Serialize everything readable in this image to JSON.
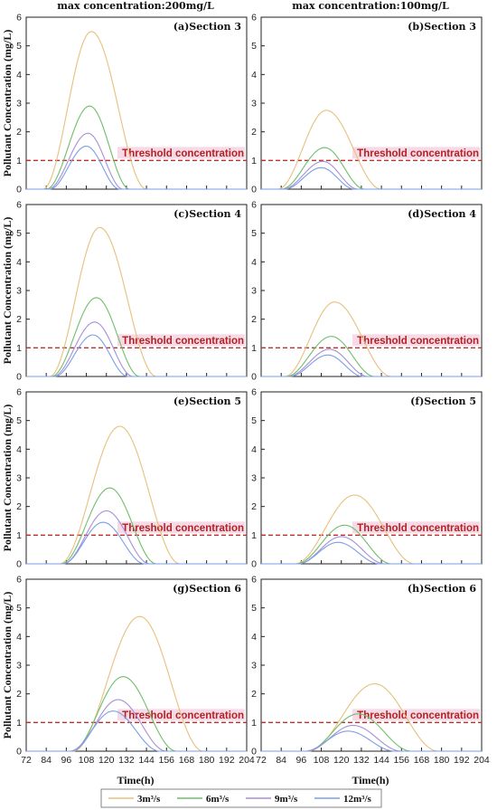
{
  "figure": {
    "col_titles": [
      "max concentration:200mg/L",
      "max concentration:100mg/L"
    ],
    "ylabel": "Pollutant Concentration (mg/L)",
    "xlabel": "Time(h)",
    "threshold_label": "Threshold concentration",
    "legend": [
      "3m³/s",
      "6m³/s",
      "9m³/s",
      "12m³/s"
    ],
    "colors": {
      "3m3s": "#e8c07d",
      "6m3s": "#6fbf6a",
      "9m3s": "#a88fd6",
      "12m3s": "#7b9ee8",
      "threshold": "#c0302b",
      "threshold_band": "#f6d6e4"
    }
  },
  "chart_data": [
    {
      "type": "line",
      "title": "(a)Section 3",
      "xlim": [
        72,
        204
      ],
      "ylim": [
        0,
        6
      ],
      "threshold": 1,
      "xticks": [
        72,
        84,
        96,
        108,
        120,
        132,
        144,
        156,
        168,
        180,
        192,
        204
      ],
      "yticks": [
        0,
        1,
        2,
        3,
        4,
        5,
        6
      ],
      "series": [
        {
          "name": "3m³/s",
          "peak_x": 111,
          "peak_y": 5.5,
          "start_x": 82,
          "end_x": 144
        },
        {
          "name": "6m³/s",
          "peak_x": 110,
          "peak_y": 2.9,
          "start_x": 84,
          "end_x": 134
        },
        {
          "name": "9m³/s",
          "peak_x": 109,
          "peak_y": 1.95,
          "start_x": 85,
          "end_x": 130
        },
        {
          "name": "12m³/s",
          "peak_x": 108,
          "peak_y": 1.5,
          "start_x": 86,
          "end_x": 128
        }
      ]
    },
    {
      "type": "line",
      "title": "(b)Section 3",
      "xlim": [
        72,
        204
      ],
      "ylim": [
        0,
        6
      ],
      "threshold": 1,
      "xticks": [
        72,
        84,
        96,
        108,
        120,
        132,
        144,
        156,
        168,
        180,
        192,
        204
      ],
      "yticks": [
        0,
        1,
        2,
        3,
        4,
        5,
        6
      ],
      "series": [
        {
          "name": "3m³/s",
          "peak_x": 111,
          "peak_y": 2.75,
          "start_x": 82,
          "end_x": 144
        },
        {
          "name": "6m³/s",
          "peak_x": 110,
          "peak_y": 1.45,
          "start_x": 84,
          "end_x": 134
        },
        {
          "name": "9m³/s",
          "peak_x": 109,
          "peak_y": 0.97,
          "start_x": 85,
          "end_x": 130
        },
        {
          "name": "12m³/s",
          "peak_x": 108,
          "peak_y": 0.75,
          "start_x": 86,
          "end_x": 128
        }
      ]
    },
    {
      "type": "line",
      "title": "(c)Section 4",
      "xlim": [
        72,
        204
      ],
      "ylim": [
        0,
        6
      ],
      "threshold": 1,
      "xticks": [
        72,
        84,
        96,
        108,
        120,
        132,
        144,
        156,
        168,
        180,
        192,
        204
      ],
      "yticks": [
        0,
        1,
        2,
        3,
        4,
        5,
        6
      ],
      "series": [
        {
          "name": "3m³/s",
          "peak_x": 116,
          "peak_y": 5.2,
          "start_x": 86,
          "end_x": 150
        },
        {
          "name": "6m³/s",
          "peak_x": 114,
          "peak_y": 2.75,
          "start_x": 87,
          "end_x": 140
        },
        {
          "name": "9m³/s",
          "peak_x": 113,
          "peak_y": 1.9,
          "start_x": 88,
          "end_x": 136
        },
        {
          "name": "12m³/s",
          "peak_x": 112,
          "peak_y": 1.45,
          "start_x": 89,
          "end_x": 133
        }
      ]
    },
    {
      "type": "line",
      "title": "(d)Section 4",
      "xlim": [
        72,
        204
      ],
      "ylim": [
        0,
        6
      ],
      "threshold": 1,
      "xticks": [
        72,
        84,
        96,
        108,
        120,
        132,
        144,
        156,
        168,
        180,
        192,
        204
      ],
      "yticks": [
        0,
        1,
        2,
        3,
        4,
        5,
        6
      ],
      "series": [
        {
          "name": "3m³/s",
          "peak_x": 116,
          "peak_y": 2.6,
          "start_x": 86,
          "end_x": 150
        },
        {
          "name": "6m³/s",
          "peak_x": 114,
          "peak_y": 1.4,
          "start_x": 87,
          "end_x": 140
        },
        {
          "name": "9m³/s",
          "peak_x": 113,
          "peak_y": 0.95,
          "start_x": 88,
          "end_x": 136
        },
        {
          "name": "12m³/s",
          "peak_x": 112,
          "peak_y": 0.75,
          "start_x": 89,
          "end_x": 133
        }
      ]
    },
    {
      "type": "line",
      "title": "(e)Section 5",
      "xlim": [
        72,
        204
      ],
      "ylim": [
        0,
        6
      ],
      "threshold": 1,
      "xticks": [
        72,
        84,
        96,
        108,
        120,
        132,
        144,
        156,
        168,
        180,
        192,
        204
      ],
      "yticks": [
        0,
        1,
        2,
        3,
        4,
        5,
        6
      ],
      "series": [
        {
          "name": "3m³/s",
          "peak_x": 128,
          "peak_y": 4.8,
          "start_x": 92,
          "end_x": 164
        },
        {
          "name": "6m³/s",
          "peak_x": 122,
          "peak_y": 2.65,
          "start_x": 93,
          "end_x": 150
        },
        {
          "name": "9m³/s",
          "peak_x": 120,
          "peak_y": 1.85,
          "start_x": 94,
          "end_x": 146
        },
        {
          "name": "12m³/s",
          "peak_x": 118,
          "peak_y": 1.45,
          "start_x": 94,
          "end_x": 143
        }
      ]
    },
    {
      "type": "line",
      "title": "(f)Section 5",
      "xlim": [
        72,
        204
      ],
      "ylim": [
        0,
        6
      ],
      "threshold": 1,
      "xticks": [
        72,
        84,
        96,
        108,
        120,
        132,
        144,
        156,
        168,
        180,
        192,
        204
      ],
      "yticks": [
        0,
        1,
        2,
        3,
        4,
        5,
        6
      ],
      "series": [
        {
          "name": "3m³/s",
          "peak_x": 128,
          "peak_y": 2.4,
          "start_x": 92,
          "end_x": 164
        },
        {
          "name": "6m³/s",
          "peak_x": 122,
          "peak_y": 1.35,
          "start_x": 93,
          "end_x": 150
        },
        {
          "name": "9m³/s",
          "peak_x": 120,
          "peak_y": 0.95,
          "start_x": 94,
          "end_x": 146
        },
        {
          "name": "12m³/s",
          "peak_x": 118,
          "peak_y": 0.75,
          "start_x": 94,
          "end_x": 143
        }
      ]
    },
    {
      "type": "line",
      "title": "(g)Section 6",
      "xlim": [
        72,
        204
      ],
      "ylim": [
        0,
        6
      ],
      "threshold": 1,
      "xticks": [
        72,
        84,
        96,
        108,
        120,
        132,
        144,
        156,
        168,
        180,
        192,
        204
      ],
      "yticks": [
        0,
        1,
        2,
        3,
        4,
        5,
        6
      ],
      "series": [
        {
          "name": "3m³/s",
          "peak_x": 140,
          "peak_y": 4.7,
          "start_x": 100,
          "end_x": 178
        },
        {
          "name": "6m³/s",
          "peak_x": 130,
          "peak_y": 2.6,
          "start_x": 99,
          "end_x": 162
        },
        {
          "name": "9m³/s",
          "peak_x": 127,
          "peak_y": 1.8,
          "start_x": 99,
          "end_x": 156
        },
        {
          "name": "12m³/s",
          "peak_x": 124,
          "peak_y": 1.4,
          "start_x": 98,
          "end_x": 152
        }
      ]
    },
    {
      "type": "line",
      "title": "(h)Section 6",
      "xlim": [
        72,
        204
      ],
      "ylim": [
        0,
        6
      ],
      "threshold": 1,
      "xticks": [
        72,
        84,
        96,
        108,
        120,
        132,
        144,
        156,
        168,
        180,
        192,
        204
      ],
      "yticks": [
        0,
        1,
        2,
        3,
        4,
        5,
        6
      ],
      "series": [
        {
          "name": "3m³/s",
          "peak_x": 140,
          "peak_y": 2.35,
          "start_x": 100,
          "end_x": 178
        },
        {
          "name": "6m³/s",
          "peak_x": 130,
          "peak_y": 1.3,
          "start_x": 99,
          "end_x": 162
        },
        {
          "name": "9m³/s",
          "peak_x": 127,
          "peak_y": 0.9,
          "start_x": 99,
          "end_x": 156
        },
        {
          "name": "12m³/s",
          "peak_x": 124,
          "peak_y": 0.7,
          "start_x": 98,
          "end_x": 152
        }
      ]
    }
  ]
}
